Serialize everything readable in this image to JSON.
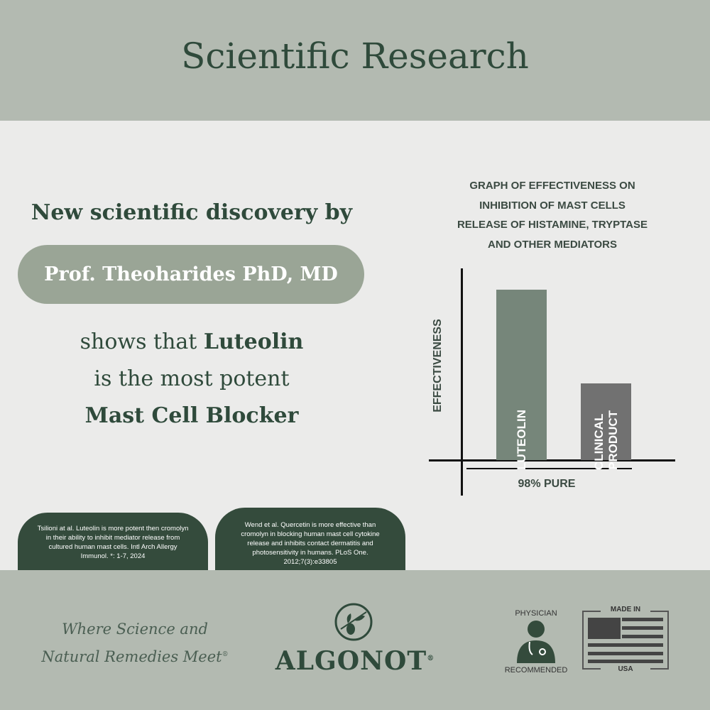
{
  "header": {
    "title": "Scientific Research"
  },
  "intro": {
    "lead": "New scientific discovery by",
    "name": "Prof. Theoharides PhD, MD",
    "line1_prefix": "shows that",
    "line1_bold": "Luteolin",
    "line2": "is the most potent",
    "line3": "Mast Cell Blocker"
  },
  "chart_data": {
    "type": "bar",
    "title": [
      "GRAPH OF EFFECTIVENESS ON",
      "INHIBITION OF MAST CELLS",
      "RELEASE OF HISTAMINE, TRYPTASE",
      "AND OTHER MEDIATORS"
    ],
    "y_label": "EFFECTIVENESS",
    "x_label": "98% PURE",
    "categories": [
      "LUTEOLIN",
      "CLINICAL PRODUCT"
    ],
    "values": [
      89,
      40
    ],
    "colors": [
      "#76867a",
      "#717171"
    ],
    "ylim": [
      0,
      100
    ]
  },
  "citations": [
    "Tsilioni at al. Luteolin is more potent then cromolyn in their ability to inhibit mediator release from cultured human mast cells. Intl Arch Allergy Immunol. *: 1-7, 2024",
    "Wend et al. Quercetin is more effective than cromolyn in blocking human mast cell cytokine release and inhibits contact dermatitis and photosensitivity in humans. PLoS One. 2012;7(3):e33805"
  ],
  "footer": {
    "tagline": [
      "Where Science and",
      "Natural Remedies Meet"
    ],
    "tagline_mark": "®",
    "brand": "ALGONOT",
    "brand_mark": "®",
    "badge_top": "PHYSICIAN",
    "badge_bottom": "RECOMMENDED",
    "flag_top": "MADE IN",
    "flag_bottom": "USA"
  }
}
